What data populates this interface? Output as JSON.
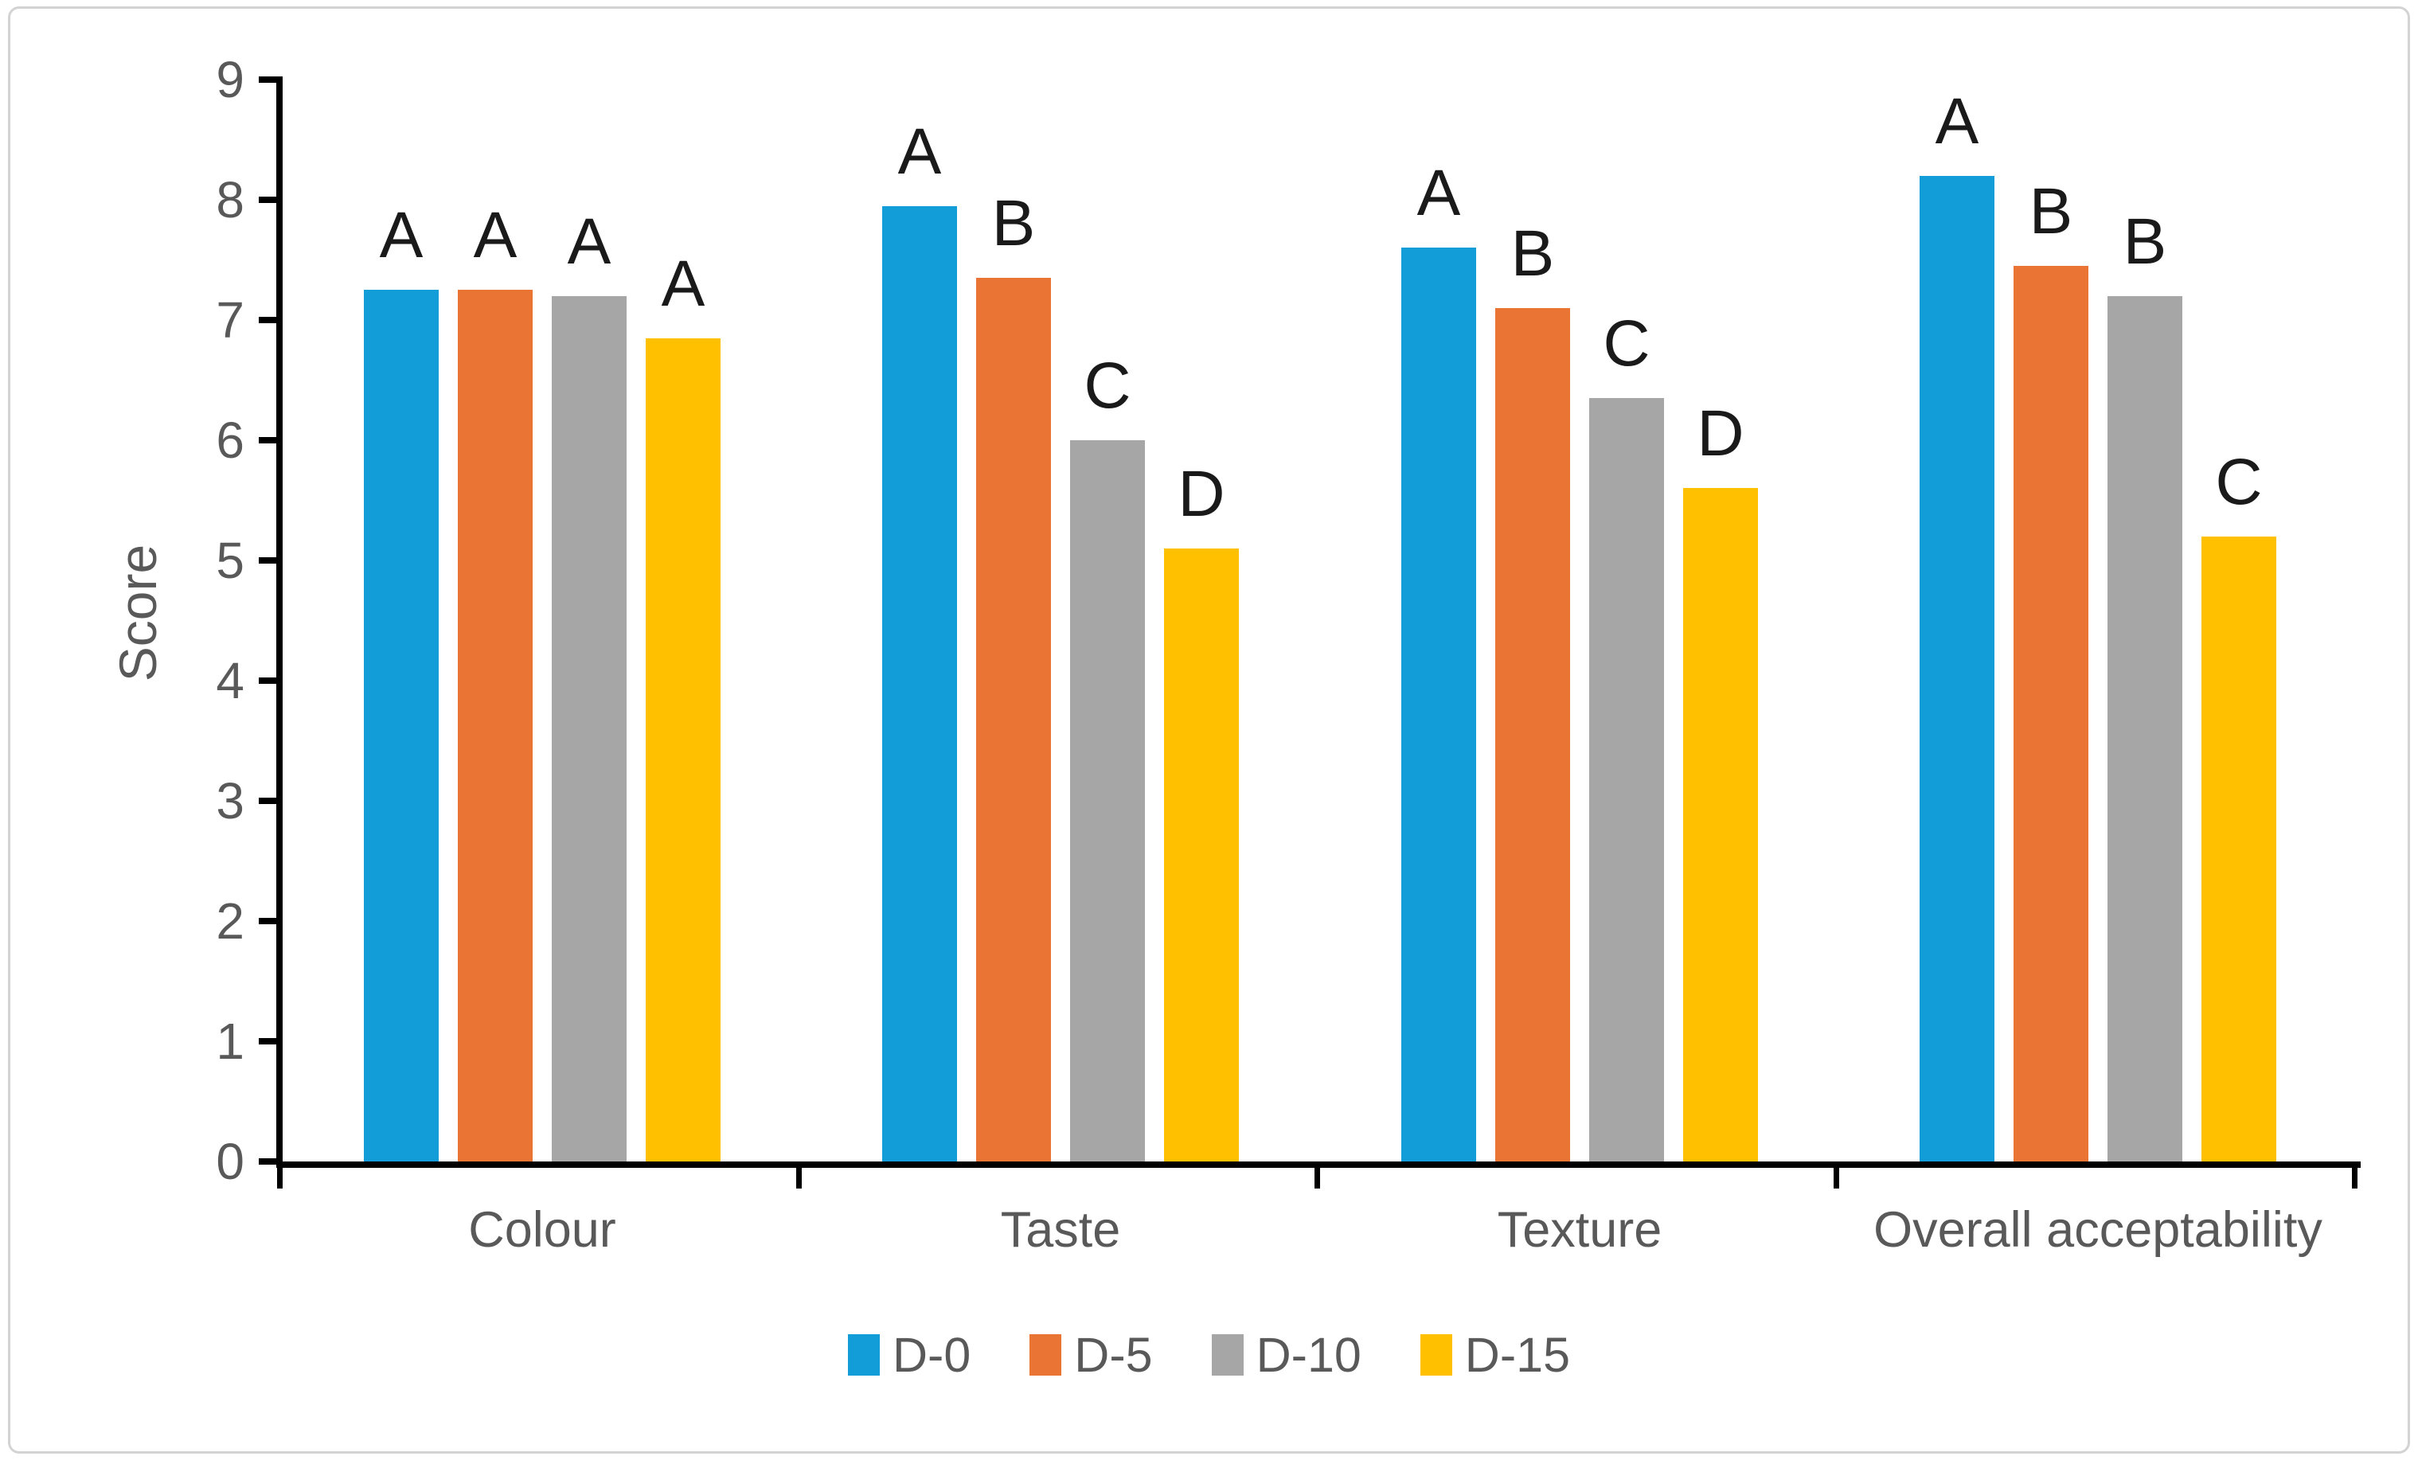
{
  "figure": {
    "frame_border_color": "#d3d3d3",
    "background_color": "#ffffff",
    "axis_color": "#000000",
    "text_color": "#595959",
    "annotation_color": "#1a1a1a"
  },
  "chart_data": {
    "type": "bar",
    "title": "",
    "xlabel": "",
    "ylabel": "Score",
    "ylim": [
      0,
      9
    ],
    "yticks": [
      0,
      1,
      2,
      3,
      4,
      5,
      6,
      7,
      8,
      9
    ],
    "grid": false,
    "legend_position": "bottom",
    "annotation_note": "letters above bars denote statistical significance groups",
    "categories": [
      "Colour",
      "Taste",
      "Texture",
      "Overall acceptability"
    ],
    "series": [
      {
        "name": "D-0",
        "color": "#129DD9",
        "values": [
          7.25,
          7.95,
          7.6,
          8.2
        ],
        "letters": [
          "A",
          "A",
          "A",
          "A"
        ]
      },
      {
        "name": "D-5",
        "color": "#EA7434",
        "values": [
          7.25,
          7.35,
          7.1,
          7.45
        ],
        "letters": [
          "A",
          "B",
          "B",
          "B"
        ]
      },
      {
        "name": "D-10",
        "color": "#A6A6A6",
        "values": [
          7.2,
          6.0,
          6.35,
          7.2
        ],
        "letters": [
          "A",
          "C",
          "C",
          "B"
        ]
      },
      {
        "name": "D-15",
        "color": "#FFC000",
        "values": [
          6.85,
          5.1,
          5.6,
          5.2
        ],
        "letters": [
          "A",
          "D",
          "D",
          "C"
        ]
      }
    ]
  }
}
